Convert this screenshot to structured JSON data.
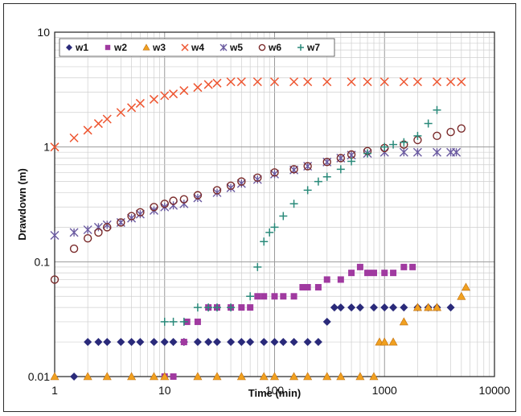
{
  "chart_data": {
    "type": "scatter",
    "xlabel": "Time (min)",
    "ylabel": "Drawdown (m)",
    "xscale": "log",
    "yscale": "log",
    "xlim": [
      1,
      10000
    ],
    "ylim": [
      0.01,
      10
    ],
    "xticks": [
      "1",
      "10",
      "100",
      "1000",
      "10000"
    ],
    "yticks": [
      "0.01",
      "0.1",
      "1",
      "10"
    ],
    "grid": true,
    "legend": "top-left",
    "series": [
      {
        "name": "w1",
        "marker": "diamond",
        "color": "#2a2a7a",
        "points": [
          [
            1.5,
            0.01
          ],
          [
            2,
            0.02
          ],
          [
            2.5,
            0.02
          ],
          [
            3,
            0.02
          ],
          [
            4,
            0.02
          ],
          [
            5,
            0.02
          ],
          [
            6,
            0.02
          ],
          [
            8,
            0.02
          ],
          [
            10,
            0.02
          ],
          [
            12,
            0.02
          ],
          [
            15,
            0.02
          ],
          [
            20,
            0.02
          ],
          [
            25,
            0.02
          ],
          [
            30,
            0.02
          ],
          [
            40,
            0.02
          ],
          [
            50,
            0.02
          ],
          [
            60,
            0.02
          ],
          [
            80,
            0.02
          ],
          [
            100,
            0.02
          ],
          [
            120,
            0.02
          ],
          [
            150,
            0.02
          ],
          [
            200,
            0.02
          ],
          [
            250,
            0.02
          ],
          [
            300,
            0.03
          ],
          [
            350,
            0.04
          ],
          [
            400,
            0.04
          ],
          [
            500,
            0.04
          ],
          [
            600,
            0.04
          ],
          [
            800,
            0.04
          ],
          [
            1000,
            0.04
          ],
          [
            1200,
            0.04
          ],
          [
            1500,
            0.04
          ],
          [
            2000,
            0.04
          ],
          [
            2500,
            0.04
          ],
          [
            3000,
            0.04
          ],
          [
            4000,
            0.04
          ]
        ]
      },
      {
        "name": "w2",
        "marker": "square",
        "color": "#a03aa0",
        "points": [
          [
            10,
            0.01
          ],
          [
            12,
            0.01
          ],
          [
            15,
            0.02
          ],
          [
            16,
            0.03
          ],
          [
            20,
            0.03
          ],
          [
            25,
            0.04
          ],
          [
            30,
            0.04
          ],
          [
            40,
            0.04
          ],
          [
            50,
            0.04
          ],
          [
            60,
            0.04
          ],
          [
            70,
            0.05
          ],
          [
            80,
            0.05
          ],
          [
            100,
            0.05
          ],
          [
            120,
            0.05
          ],
          [
            150,
            0.05
          ],
          [
            180,
            0.06
          ],
          [
            200,
            0.06
          ],
          [
            250,
            0.06
          ],
          [
            300,
            0.07
          ],
          [
            400,
            0.07
          ],
          [
            500,
            0.08
          ],
          [
            600,
            0.09
          ],
          [
            700,
            0.08
          ],
          [
            800,
            0.08
          ],
          [
            1000,
            0.08
          ],
          [
            1200,
            0.08
          ],
          [
            1500,
            0.09
          ],
          [
            1800,
            0.09
          ]
        ]
      },
      {
        "name": "w3",
        "marker": "triangle",
        "color": "#f0a020",
        "points": [
          [
            1,
            0.01
          ],
          [
            2,
            0.01
          ],
          [
            3,
            0.01
          ],
          [
            5,
            0.01
          ],
          [
            8,
            0.01
          ],
          [
            10,
            0.01
          ],
          [
            20,
            0.01
          ],
          [
            30,
            0.01
          ],
          [
            50,
            0.01
          ],
          [
            80,
            0.01
          ],
          [
            100,
            0.01
          ],
          [
            150,
            0.01
          ],
          [
            200,
            0.01
          ],
          [
            300,
            0.01
          ],
          [
            400,
            0.01
          ],
          [
            600,
            0.01
          ],
          [
            800,
            0.01
          ],
          [
            900,
            0.02
          ],
          [
            1000,
            0.02
          ],
          [
            1200,
            0.02
          ],
          [
            1500,
            0.03
          ],
          [
            2000,
            0.04
          ],
          [
            2500,
            0.04
          ],
          [
            3000,
            0.04
          ],
          [
            5000,
            0.05
          ],
          [
            5500,
            0.06
          ]
        ]
      },
      {
        "name": "w4",
        "marker": "x",
        "color": "#ee5530",
        "points": [
          [
            1,
            1
          ],
          [
            1.5,
            1.2
          ],
          [
            2,
            1.4
          ],
          [
            2.5,
            1.6
          ],
          [
            3,
            1.75
          ],
          [
            4,
            2
          ],
          [
            5,
            2.2
          ],
          [
            6,
            2.4
          ],
          [
            8,
            2.6
          ],
          [
            10,
            2.8
          ],
          [
            12,
            2.9
          ],
          [
            15,
            3.1
          ],
          [
            20,
            3.3
          ],
          [
            25,
            3.5
          ],
          [
            30,
            3.6
          ],
          [
            40,
            3.7
          ],
          [
            50,
            3.7
          ],
          [
            70,
            3.7
          ],
          [
            100,
            3.7
          ],
          [
            150,
            3.7
          ],
          [
            200,
            3.7
          ],
          [
            300,
            3.7
          ],
          [
            500,
            3.7
          ],
          [
            700,
            3.7
          ],
          [
            1000,
            3.7
          ],
          [
            1500,
            3.7
          ],
          [
            2000,
            3.7
          ],
          [
            3000,
            3.7
          ],
          [
            4000,
            3.7
          ],
          [
            5000,
            3.7
          ]
        ]
      },
      {
        "name": "w5",
        "marker": "asterisk",
        "color": "#6a5aa0",
        "points": [
          [
            1,
            0.17
          ],
          [
            1.5,
            0.18
          ],
          [
            2,
            0.19
          ],
          [
            2.5,
            0.2
          ],
          [
            3,
            0.21
          ],
          [
            4,
            0.22
          ],
          [
            5,
            0.24
          ],
          [
            6,
            0.26
          ],
          [
            8,
            0.28
          ],
          [
            10,
            0.3
          ],
          [
            12,
            0.31
          ],
          [
            15,
            0.32
          ],
          [
            20,
            0.36
          ],
          [
            30,
            0.4
          ],
          [
            40,
            0.44
          ],
          [
            50,
            0.48
          ],
          [
            70,
            0.52
          ],
          [
            100,
            0.58
          ],
          [
            150,
            0.63
          ],
          [
            200,
            0.68
          ],
          [
            300,
            0.74
          ],
          [
            400,
            0.8
          ],
          [
            500,
            0.85
          ],
          [
            700,
            0.88
          ],
          [
            1000,
            0.9
          ],
          [
            1500,
            0.9
          ],
          [
            2000,
            0.9
          ],
          [
            3000,
            0.9
          ],
          [
            4000,
            0.9
          ],
          [
            4500,
            0.9
          ]
        ]
      },
      {
        "name": "w6",
        "marker": "circle",
        "color": "#7a2a2a",
        "points": [
          [
            1,
            0.07
          ],
          [
            1.5,
            0.13
          ],
          [
            2,
            0.16
          ],
          [
            2.5,
            0.18
          ],
          [
            3,
            0.2
          ],
          [
            4,
            0.22
          ],
          [
            5,
            0.25
          ],
          [
            6,
            0.27
          ],
          [
            8,
            0.3
          ],
          [
            10,
            0.32
          ],
          [
            12,
            0.34
          ],
          [
            15,
            0.35
          ],
          [
            20,
            0.38
          ],
          [
            30,
            0.42
          ],
          [
            40,
            0.46
          ],
          [
            50,
            0.5
          ],
          [
            70,
            0.54
          ],
          [
            100,
            0.6
          ],
          [
            150,
            0.64
          ],
          [
            200,
            0.68
          ],
          [
            300,
            0.74
          ],
          [
            400,
            0.8
          ],
          [
            500,
            0.86
          ],
          [
            700,
            0.92
          ],
          [
            1000,
            0.98
          ],
          [
            1500,
            1.05
          ],
          [
            2000,
            1.15
          ],
          [
            3000,
            1.25
          ],
          [
            4000,
            1.35
          ],
          [
            5000,
            1.45
          ]
        ]
      },
      {
        "name": "w7",
        "marker": "plus",
        "color": "#2a8a7a",
        "points": [
          [
            10,
            0.03
          ],
          [
            12,
            0.03
          ],
          [
            15,
            0.03
          ],
          [
            20,
            0.04
          ],
          [
            25,
            0.04
          ],
          [
            30,
            0.04
          ],
          [
            40,
            0.04
          ],
          [
            60,
            0.05
          ],
          [
            70,
            0.09
          ],
          [
            80,
            0.15
          ],
          [
            90,
            0.18
          ],
          [
            100,
            0.2
          ],
          [
            120,
            0.25
          ],
          [
            150,
            0.32
          ],
          [
            200,
            0.42
          ],
          [
            250,
            0.5
          ],
          [
            300,
            0.55
          ],
          [
            400,
            0.64
          ],
          [
            500,
            0.75
          ],
          [
            700,
            0.88
          ],
          [
            1000,
            1.0
          ],
          [
            1200,
            1.05
          ],
          [
            1500,
            1.1
          ],
          [
            2000,
            1.25
          ],
          [
            2500,
            1.6
          ],
          [
            3000,
            2.1
          ]
        ]
      }
    ]
  }
}
